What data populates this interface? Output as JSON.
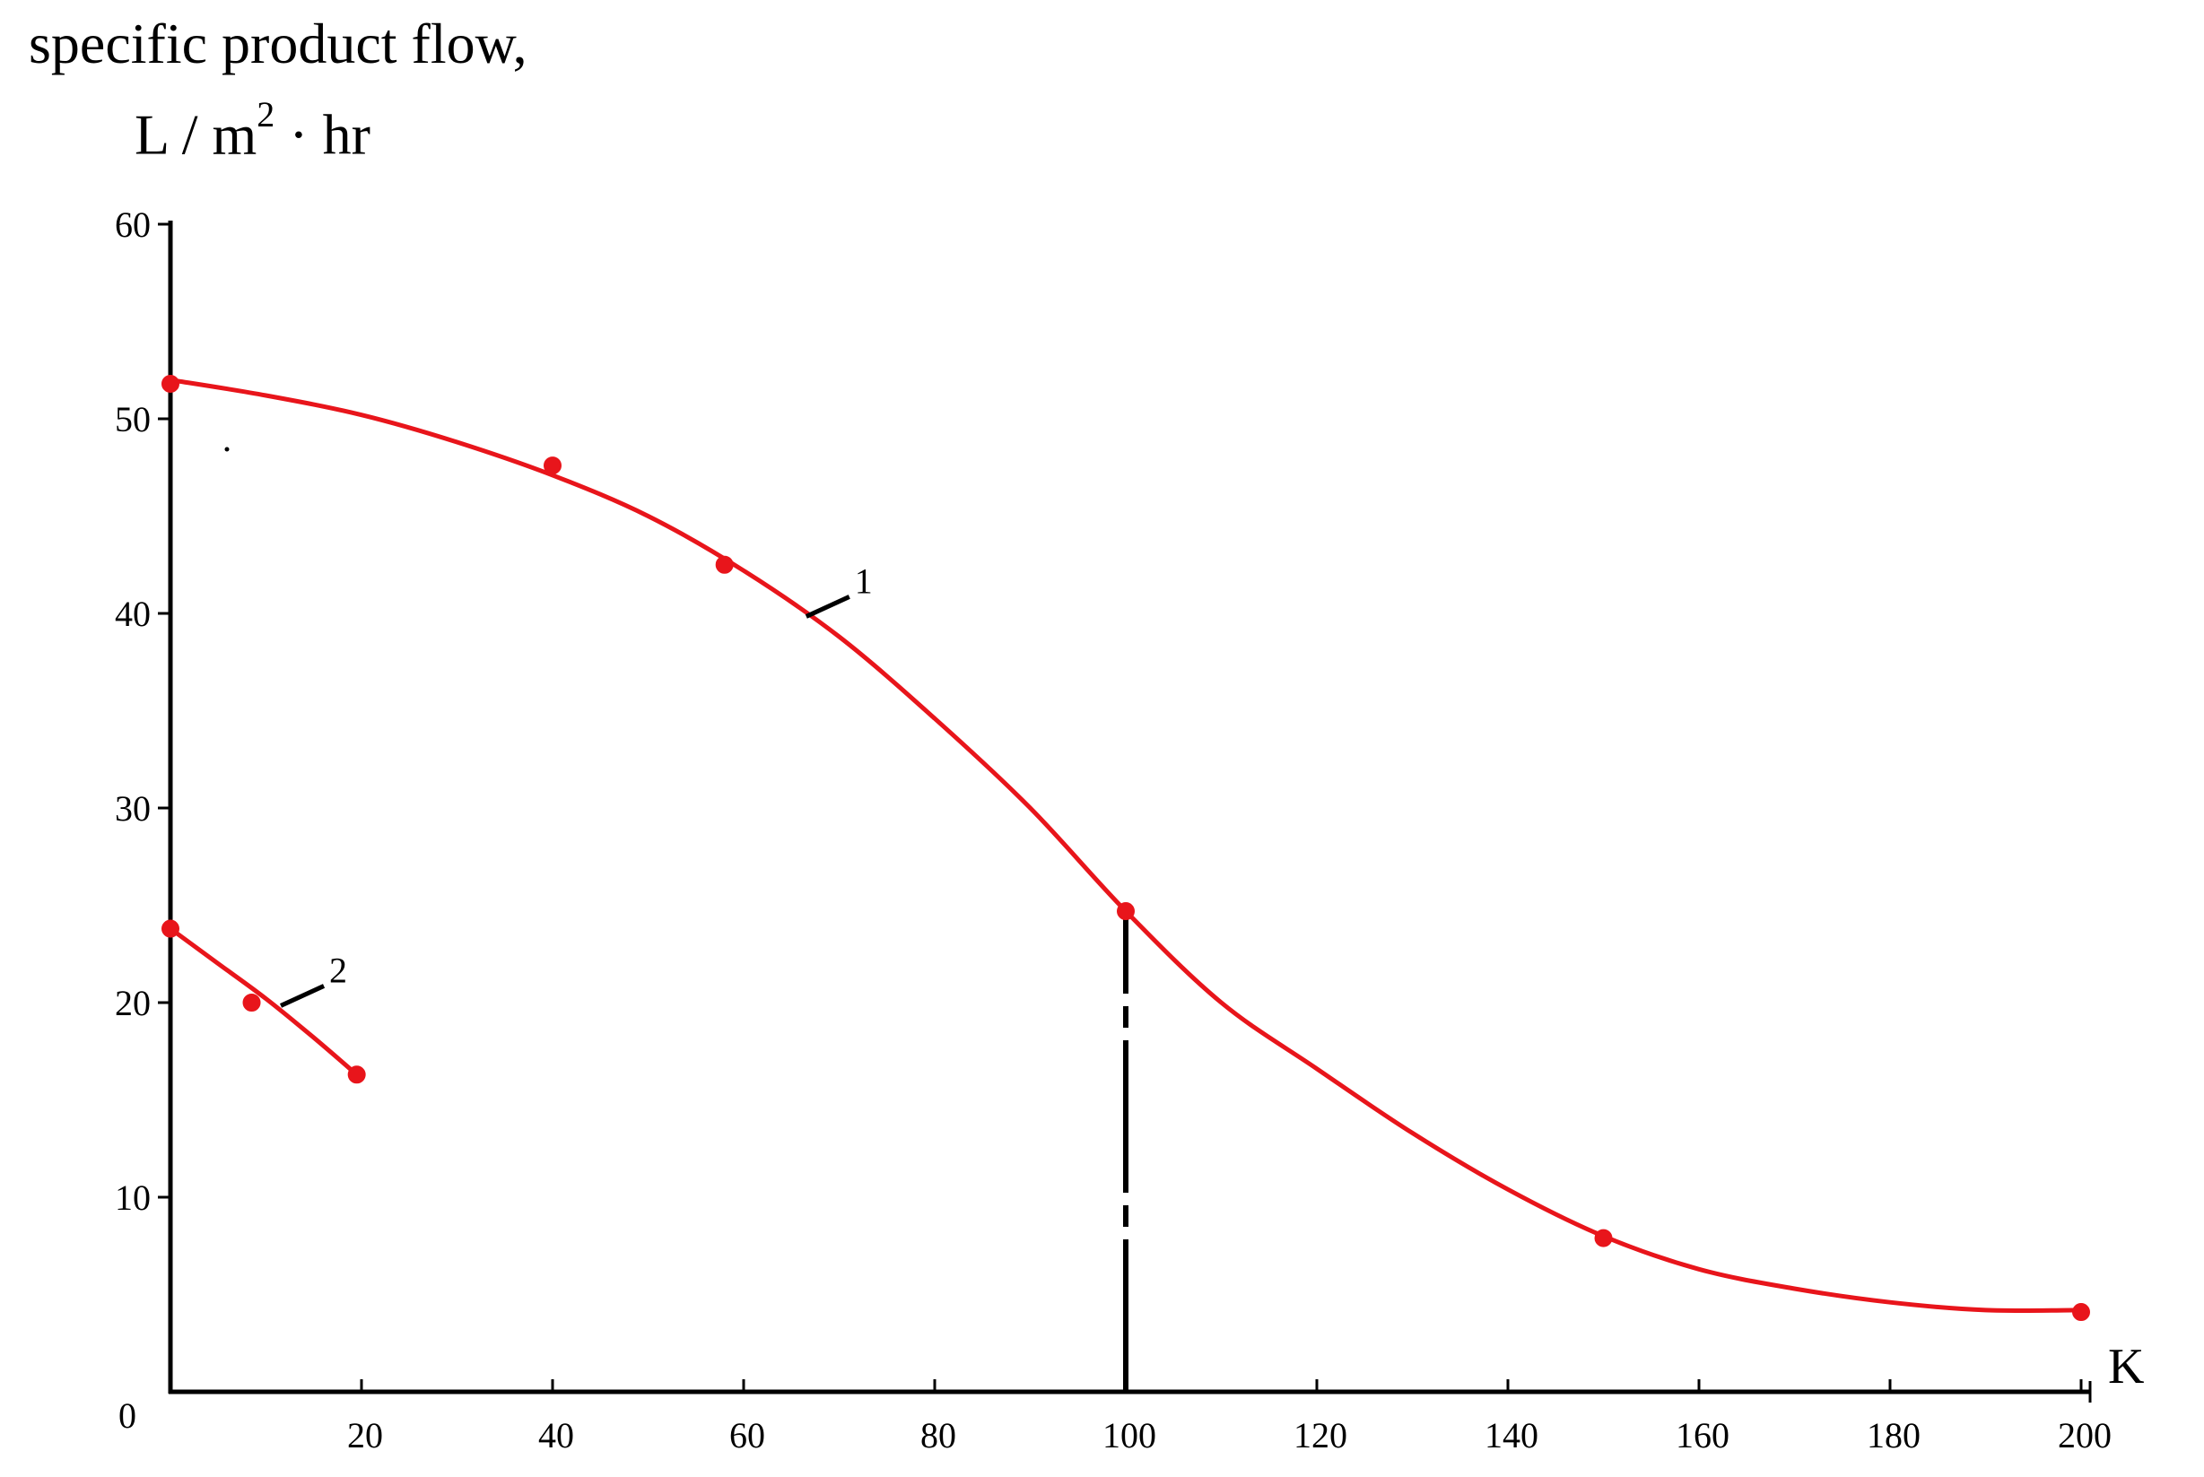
{
  "chart_data": {
    "type": "line",
    "ylabel_line1": "specific product flow,",
    "ylabel_unit": {
      "before": "L / m",
      "sup": "2",
      "after": " · hr"
    },
    "xlabel": "K",
    "xlim": [
      0,
      200
    ],
    "ylim": [
      0,
      60
    ],
    "x_ticks": [
      20,
      40,
      60,
      80,
      100,
      120,
      140,
      160,
      180,
      200
    ],
    "y_ticks": [
      10,
      20,
      30,
      40,
      50,
      60
    ],
    "origin_label": "0",
    "grid": false,
    "legend": "none",
    "curve_color": "#e8151b",
    "series": [
      {
        "name": "1",
        "points": [
          {
            "x": 0,
            "y": 51.8
          },
          {
            "x": 40,
            "y": 47.6
          },
          {
            "x": 58,
            "y": 42.5
          },
          {
            "x": 100,
            "y": 24.7
          },
          {
            "x": 150,
            "y": 7.9
          },
          {
            "x": 200,
            "y": 4.1
          }
        ],
        "curve": [
          [
            0,
            52.0
          ],
          [
            10,
            51.2
          ],
          [
            20,
            50.2
          ],
          [
            30,
            48.8
          ],
          [
            40,
            47.1
          ],
          [
            50,
            45.0
          ],
          [
            60,
            42.2
          ],
          [
            70,
            38.8
          ],
          [
            80,
            34.6
          ],
          [
            90,
            30.0
          ],
          [
            100,
            24.7
          ],
          [
            110,
            20.0
          ],
          [
            120,
            16.6
          ],
          [
            130,
            13.3
          ],
          [
            140,
            10.4
          ],
          [
            150,
            8.0
          ],
          [
            160,
            6.3
          ],
          [
            170,
            5.3
          ],
          [
            180,
            4.6
          ],
          [
            190,
            4.2
          ],
          [
            200,
            4.2
          ]
        ],
        "label_at": {
          "x": 72,
          "y": 41.5
        }
      },
      {
        "name": "2",
        "points": [
          {
            "x": 0,
            "y": 23.8
          },
          {
            "x": 8.5,
            "y": 20.0
          },
          {
            "x": 19.5,
            "y": 16.3
          }
        ],
        "curve": [
          [
            0,
            23.8
          ],
          [
            5,
            22.0
          ],
          [
            10,
            20.2
          ],
          [
            15,
            18.2
          ],
          [
            19.5,
            16.3
          ]
        ],
        "label_at": {
          "x": 17,
          "y": 21.5
        }
      }
    ],
    "reference_line": {
      "x": 100,
      "y_from": 0,
      "y_to": 24.7,
      "style": "dashed"
    }
  }
}
